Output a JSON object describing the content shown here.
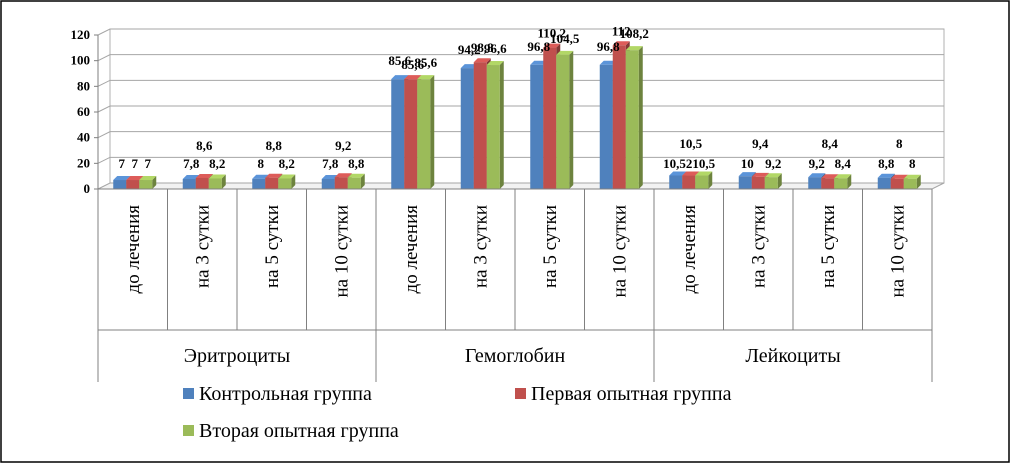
{
  "chart_data": {
    "type": "bar",
    "ylim": [
      0,
      120
    ],
    "yticks": [
      0,
      20,
      40,
      60,
      80,
      100,
      120
    ],
    "grid": true,
    "legend_position": "bottom",
    "groups": [
      {
        "name": "Эритроциты",
        "categories": [
          "до лечения",
          "на 3 сутки",
          "на 5 сутки",
          "на 10 сутки"
        ]
      },
      {
        "name": "Гемоглобин",
        "categories": [
          "до лечения",
          "на 3 сутки",
          "на 5 сутки",
          "на 10 сутки"
        ]
      },
      {
        "name": "Лейкоциты",
        "categories": [
          "до лечения",
          "на 3 сутки",
          "на 5 сутки",
          "на 10 сутки"
        ]
      }
    ],
    "series": [
      {
        "name": "Контрольная группа",
        "color": "#4F81BD",
        "values": [
          7,
          7.8,
          8,
          7.8,
          85.6,
          94.2,
          96.8,
          96.8,
          10.52,
          10,
          9.2,
          8.8
        ],
        "labels": [
          "7",
          "7,8",
          "8",
          "7,8",
          "85,6",
          "94,2",
          "96,8",
          "96,8",
          "10,52",
          "10",
          "9,2",
          "8,8"
        ]
      },
      {
        "name": "Первая опытная группа",
        "color": "#C0504D",
        "values": [
          7,
          8.6,
          8.8,
          9.2,
          85.6,
          98.8,
          110.2,
          112,
          10.5,
          9.4,
          8.4,
          8
        ],
        "labels": [
          "7",
          "8,6",
          "8,8",
          "9,2",
          "85,6",
          "98,8",
          "110,2",
          "112",
          "10,5",
          "9,4",
          "8,4",
          "8"
        ]
      },
      {
        "name": "Вторая опытная группа",
        "color": "#9BBB59",
        "values": [
          7,
          8.2,
          8.2,
          8.8,
          85.6,
          96.6,
          104.5,
          108.2,
          10.5,
          9.2,
          8.4,
          8
        ],
        "labels": [
          "7",
          "8,2",
          "8,2",
          "8,8",
          "85,6",
          "96,6",
          "104,5",
          "108,2",
          "10,5",
          "9,2",
          "8,4",
          "8"
        ]
      }
    ]
  }
}
